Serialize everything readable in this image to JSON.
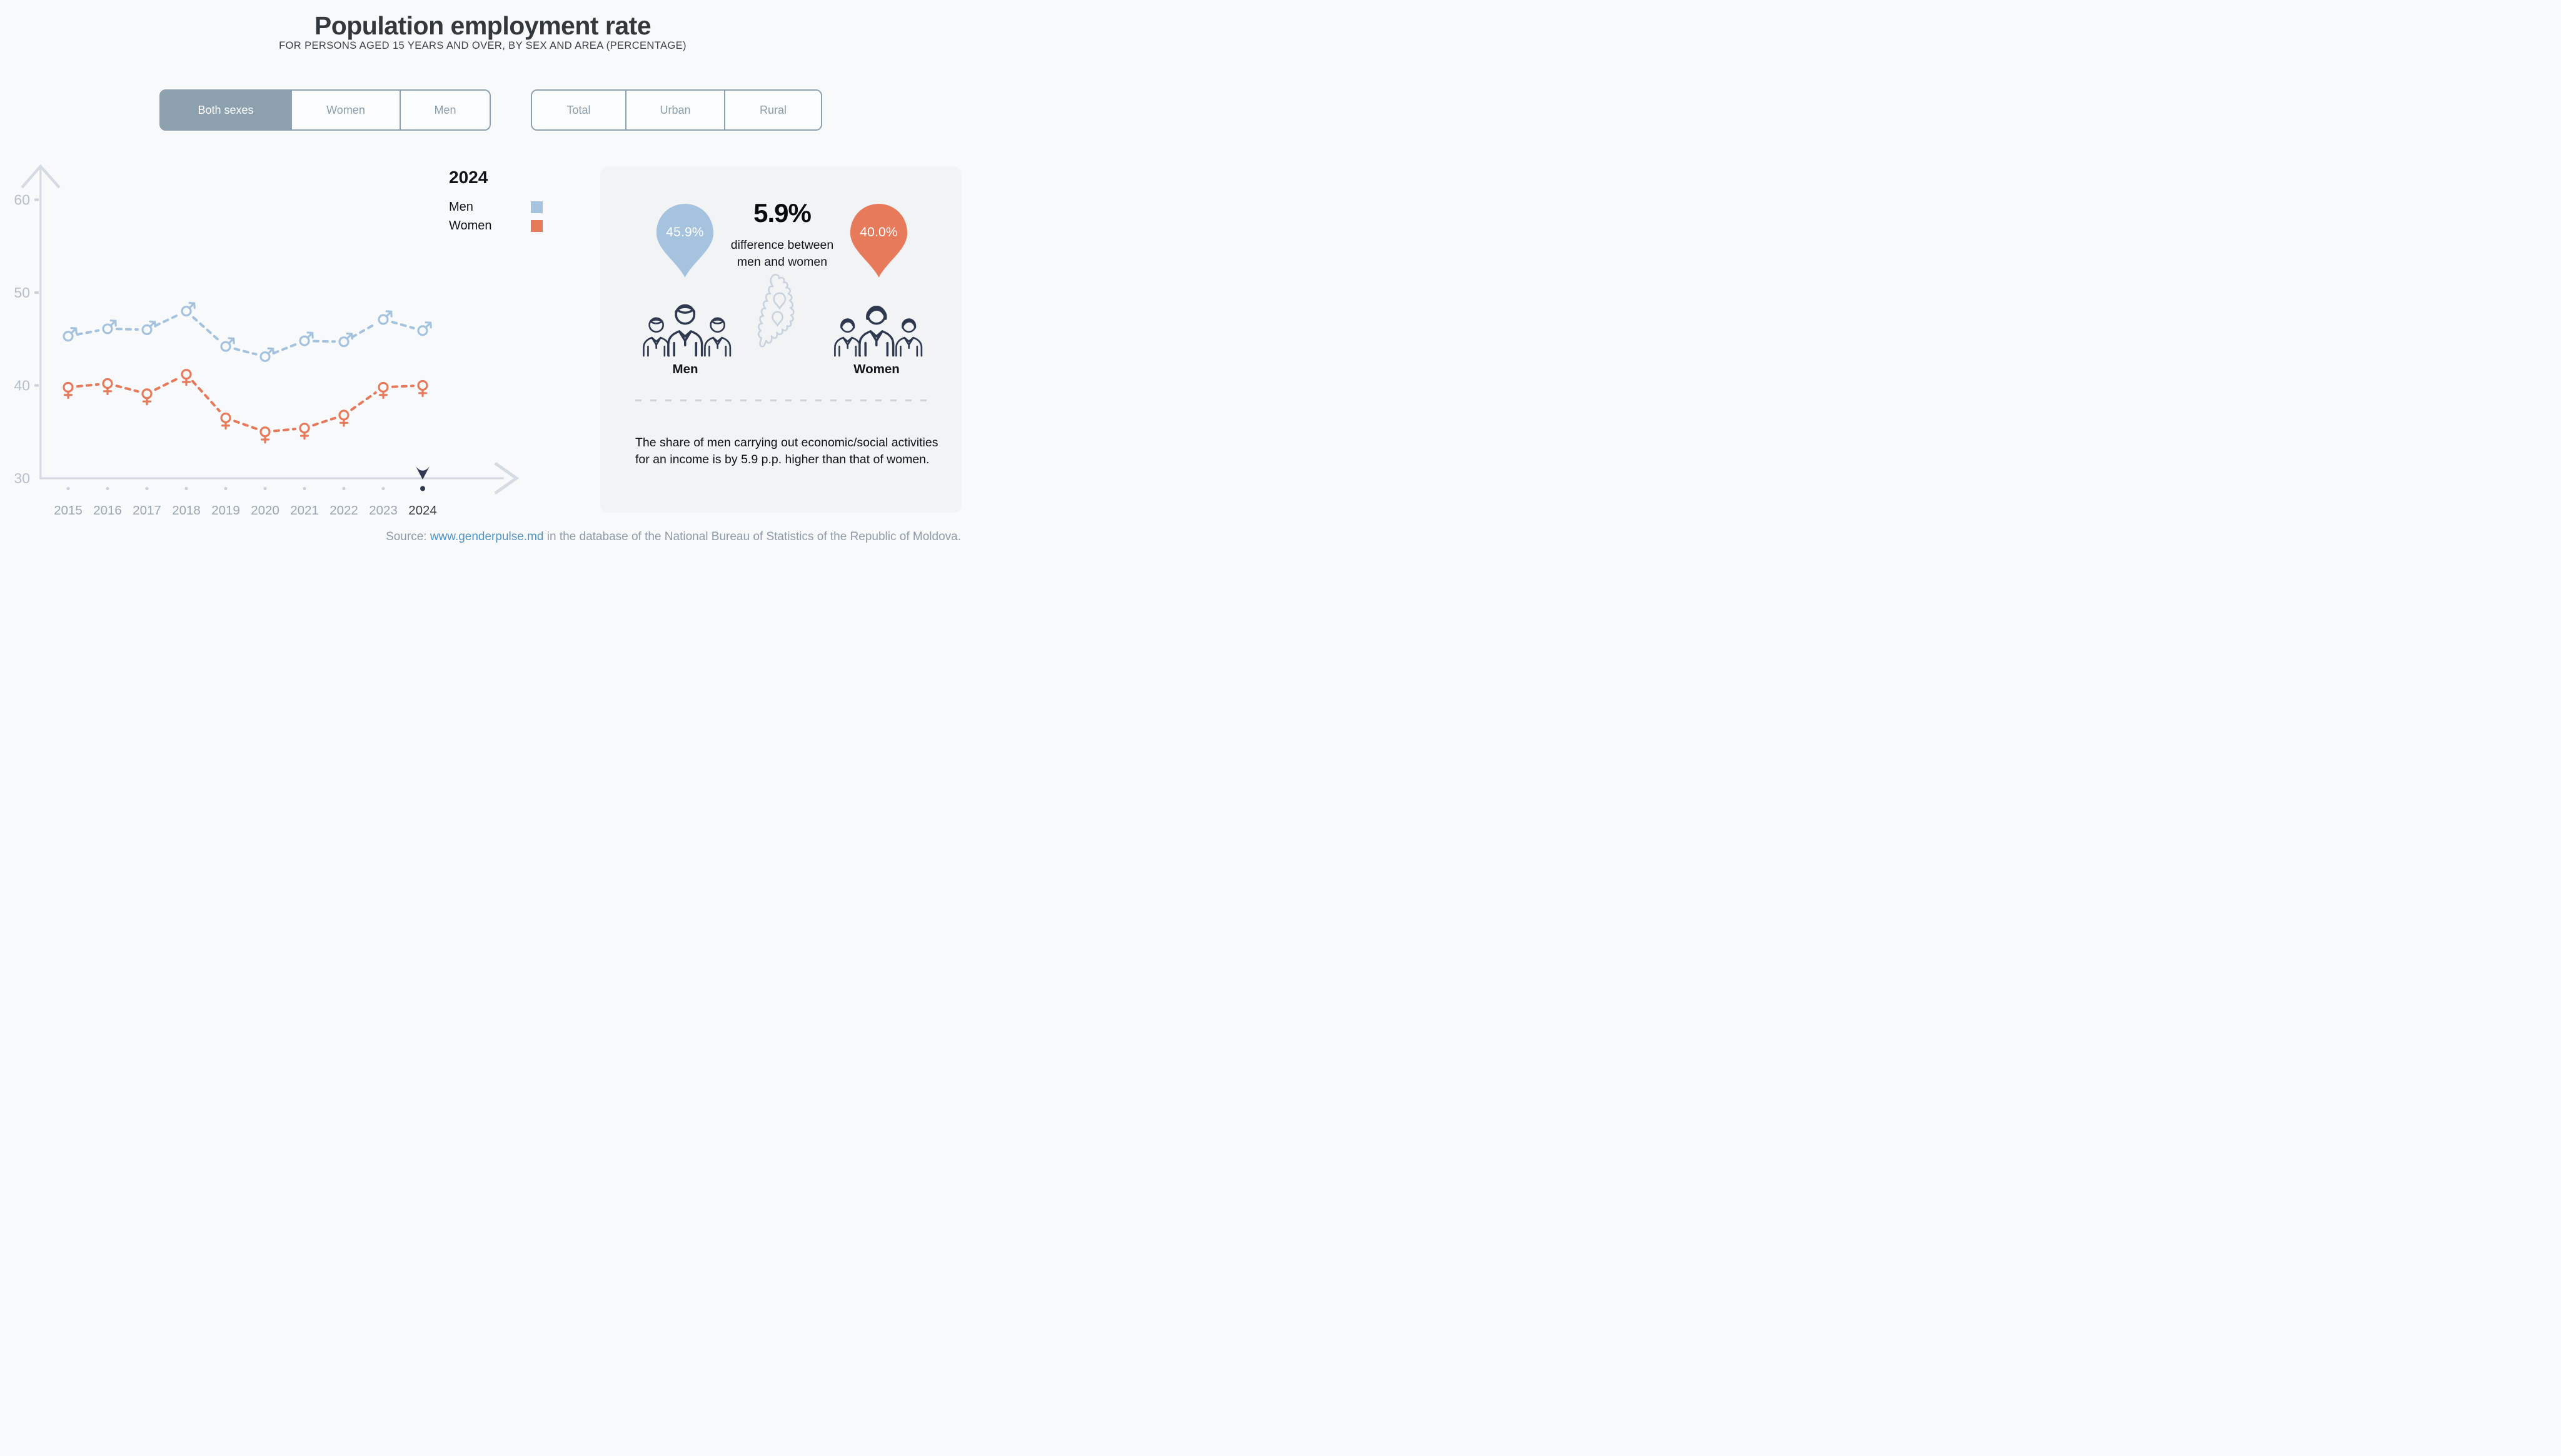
{
  "header": {
    "title": "Population employment rate",
    "subtitle": "FOR PERSONS AGED 15 YEARS AND OVER, BY SEX AND AREA (PERCENTAGE)"
  },
  "filters": {
    "sex": {
      "options": [
        {
          "label": "Both sexes",
          "active": true
        },
        {
          "label": "Women",
          "active": false
        },
        {
          "label": "Men",
          "active": false
        }
      ]
    },
    "area": {
      "options": [
        {
          "label": "Total",
          "active": false
        },
        {
          "label": "Urban",
          "active": false
        },
        {
          "label": "Rural",
          "active": false
        }
      ]
    }
  },
  "legend": {
    "year": "2024",
    "items": [
      {
        "label": "Men",
        "color": "#a5c3de"
      },
      {
        "label": "Women",
        "color": "#e87a5c"
      }
    ]
  },
  "chart_data": {
    "type": "line",
    "title": "Population employment rate",
    "x": [
      2015,
      2016,
      2017,
      2018,
      2019,
      2020,
      2021,
      2022,
      2023,
      2024
    ],
    "series": [
      {
        "name": "Men",
        "color": "#a5c3de",
        "marker": "male",
        "values": [
          45.3,
          46.1,
          46.0,
          48.0,
          44.2,
          43.1,
          44.8,
          44.7,
          47.1,
          45.9
        ]
      },
      {
        "name": "Women",
        "color": "#e87a5c",
        "marker": "female",
        "values": [
          39.8,
          40.2,
          39.1,
          41.2,
          36.5,
          35.0,
          35.4,
          36.8,
          39.8,
          40.0
        ]
      }
    ],
    "y_ticks": [
      30,
      40,
      50,
      60
    ],
    "ylim": [
      30,
      63
    ],
    "line_style": "dashed",
    "grid": false,
    "legend_position": "top-right",
    "selected_year": 2024,
    "selected_year_color": "#2e3950",
    "axis_color": "#d5dbe2",
    "tick_label_color": "#b7c0ca",
    "year_label_color": "#9aa7b3",
    "year_dot_color": "#c9d2dc"
  },
  "panel": {
    "men_pin": {
      "value": "45.9%",
      "color": "#a5c3de"
    },
    "women_pin": {
      "value": "40.0%",
      "color": "#e87a5c"
    },
    "difference": {
      "value": "5.9%",
      "caption": "difference between men and women"
    },
    "men_label": "Men",
    "women_label": "Women",
    "note": "The share of men carrying out economic/social activities for an income is by 5.9 p.p. higher than that of women."
  },
  "source": {
    "prefix": "Source: ",
    "link": "www.genderpulse.md",
    "suffix": " in the database of the National Bureau of Statistics of the Republic of Moldova."
  }
}
